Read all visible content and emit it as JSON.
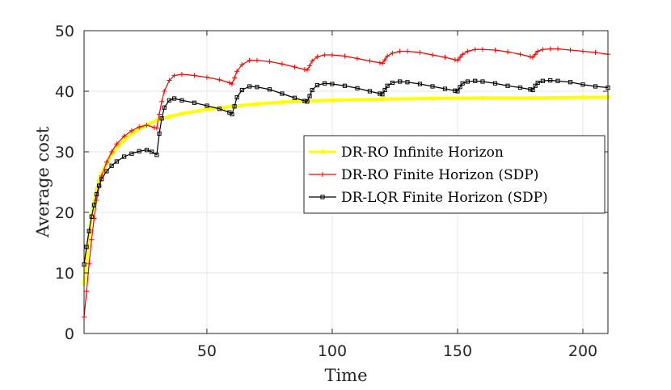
{
  "chart_data": {
    "type": "line",
    "xlabel": "Time",
    "ylabel": "Average cost",
    "xlim": [
      1,
      210
    ],
    "ylim": [
      0,
      50
    ],
    "xticks": [
      50,
      100,
      150,
      200
    ],
    "yticks": [
      0,
      10,
      20,
      30,
      40,
      50
    ],
    "grid": true,
    "legend_position": "center-right",
    "series": [
      {
        "name": "DR-RO Infinite Horizon",
        "color": "#ffff00",
        "marker": "circle",
        "x": [
          1,
          2,
          3,
          4,
          5,
          6,
          7,
          8,
          10,
          12,
          14,
          17,
          20,
          25,
          30,
          35,
          40,
          50,
          60,
          70,
          80,
          90,
          100,
          120,
          140,
          160,
          180,
          200,
          210
        ],
        "y": [
          8.3,
          13.0,
          16.5,
          19.5,
          21.8,
          23.8,
          25.3,
          26.5,
          28.2,
          29.6,
          30.7,
          32.0,
          33.0,
          34.3,
          35.2,
          35.8,
          36.3,
          37.0,
          37.5,
          37.9,
          38.2,
          38.4,
          38.5,
          38.7,
          38.8,
          38.9,
          38.9,
          39.0,
          39.0
        ]
      },
      {
        "name": "DR-RO Finite Horizon (SDP)",
        "color": "#ff0000",
        "marker": "plus",
        "x": [
          1,
          2,
          3,
          4,
          5,
          6,
          7,
          8,
          10,
          12,
          14,
          17,
          20,
          23,
          26,
          29,
          30,
          31,
          32,
          33,
          35,
          37,
          40,
          45,
          50,
          55,
          59,
          60,
          61,
          62,
          64,
          67,
          70,
          75,
          80,
          85,
          89,
          90,
          91,
          92,
          94,
          97,
          100,
          105,
          110,
          115,
          119,
          120,
          121,
          122,
          124,
          127,
          130,
          135,
          140,
          145,
          149,
          150,
          151,
          152,
          154,
          157,
          160,
          165,
          170,
          175,
          179,
          180,
          181,
          182,
          184,
          187,
          190,
          195,
          200,
          205,
          210
        ],
        "y": [
          2.7,
          7.0,
          11.5,
          15.5,
          19.0,
          22.0,
          24.3,
          26.0,
          28.3,
          30.0,
          31.3,
          32.6,
          33.5,
          34.1,
          34.4,
          34.0,
          33.9,
          36.2,
          38.3,
          40.0,
          41.8,
          42.6,
          42.8,
          42.6,
          42.3,
          41.9,
          41.4,
          41.2,
          42.2,
          43.3,
          44.4,
          45.1,
          45.1,
          44.9,
          44.5,
          44.0,
          43.6,
          43.5,
          44.2,
          45.0,
          45.7,
          46.0,
          46.0,
          45.8,
          45.4,
          45.0,
          44.7,
          44.6,
          45.2,
          45.8,
          46.3,
          46.6,
          46.6,
          46.4,
          46.0,
          45.6,
          45.2,
          45.1,
          45.6,
          46.1,
          46.6,
          46.9,
          46.9,
          46.8,
          46.5,
          46.1,
          45.7,
          45.6,
          46.1,
          46.6,
          46.9,
          47.0,
          47.0,
          46.8,
          46.6,
          46.4,
          46.1
        ]
      },
      {
        "name": "DR-LQR Finite Horizon (SDP)",
        "color": "#000000",
        "marker": "square",
        "x": [
          1,
          2,
          3,
          4,
          5,
          6,
          7,
          8,
          10,
          12,
          14,
          17,
          20,
          23,
          26,
          28,
          30,
          31,
          32,
          33,
          35,
          37,
          40,
          45,
          50,
          55,
          59,
          60,
          61,
          62,
          64,
          67,
          70,
          75,
          80,
          85,
          89,
          90,
          91,
          92,
          94,
          97,
          100,
          105,
          110,
          115,
          119,
          120,
          121,
          122,
          124,
          127,
          130,
          135,
          140,
          145,
          149,
          150,
          151,
          152,
          154,
          157,
          160,
          165,
          170,
          175,
          179,
          180,
          181,
          182,
          184,
          187,
          190,
          195,
          200,
          205,
          210
        ],
        "y": [
          11.4,
          14.3,
          16.9,
          19.3,
          21.2,
          23.0,
          24.4,
          25.5,
          26.8,
          27.7,
          28.4,
          29.2,
          29.7,
          30.1,
          30.3,
          30.0,
          29.5,
          33.0,
          35.5,
          37.3,
          38.5,
          38.8,
          38.5,
          38.1,
          37.6,
          37.1,
          36.5,
          36.2,
          37.5,
          39.0,
          40.2,
          40.8,
          40.7,
          40.3,
          39.6,
          38.9,
          38.4,
          38.3,
          39.2,
          40.2,
          41.0,
          41.3,
          41.2,
          40.9,
          40.5,
          40.0,
          39.6,
          39.5,
          40.2,
          40.9,
          41.4,
          41.6,
          41.5,
          41.2,
          40.8,
          40.4,
          40.1,
          40.0,
          40.7,
          41.3,
          41.6,
          41.7,
          41.6,
          41.3,
          40.9,
          40.6,
          40.3,
          40.2,
          40.9,
          41.4,
          41.7,
          41.8,
          41.7,
          41.5,
          41.1,
          40.8,
          40.6
        ]
      }
    ]
  }
}
